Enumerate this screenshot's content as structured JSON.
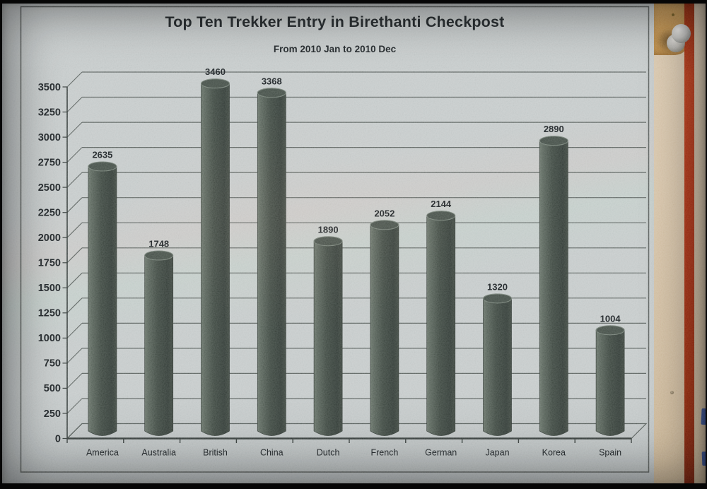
{
  "chart_data": {
    "type": "bar",
    "style": "3d-cylinder",
    "title": "Top Ten Trekker Entry in Birethanti Checkpost",
    "subtitle": "From 2010 Jan to 2010 Dec",
    "categories": [
      "America",
      "Australia",
      "British",
      "China",
      "Dutch",
      "French",
      "German",
      "Japan",
      "Korea",
      "Spain"
    ],
    "values": [
      2635,
      1748,
      3460,
      3368,
      1890,
      2052,
      2144,
      1320,
      2890,
      1004
    ],
    "value_labels": [
      "2635",
      "1748",
      "3460",
      "3368",
      "1890",
      "2052",
      "2144",
      "1320",
      "2890",
      "1004"
    ],
    "xlabel": "",
    "ylabel": "",
    "ylim": [
      0,
      3500
    ],
    "ytick_step": 250,
    "grid": true,
    "legend": false,
    "bar_value_labels_shown": true
  },
  "colors": {
    "paper": "#c6cbcb",
    "ink": "#23282b",
    "grid": "#50575400",
    "gridline": "#4f5653",
    "axis": "#3a413f",
    "frame": "#5c615f",
    "bar_light": "#6e796f",
    "bar_mid": "#454f48",
    "bar_dark": "#3a433e",
    "bar_cap": "#4b554e",
    "bar_cap_rim": "#79847b",
    "board": "#d9c8ae",
    "board_patch": "#c89a58",
    "stripe": "#b5361a",
    "pin": "#dcdcd9",
    "blue_mark": "#2a4a9e"
  }
}
